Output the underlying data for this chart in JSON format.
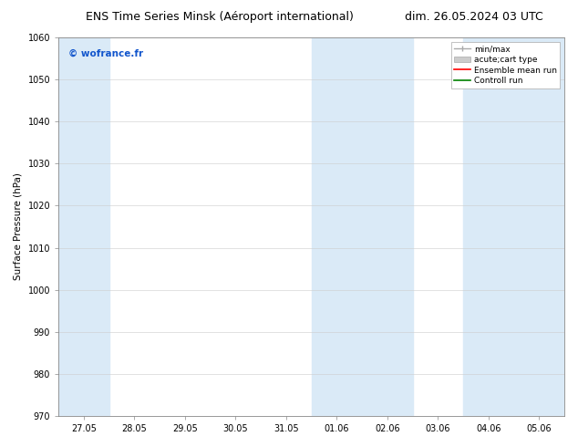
{
  "title": "ENS Time Series Minsk (Aéroport international)",
  "date_label": "dim. 26.05.2024 03 UTC",
  "ylabel": "Surface Pressure (hPa)",
  "ylim": [
    970,
    1060
  ],
  "yticks": [
    970,
    980,
    990,
    1000,
    1010,
    1020,
    1030,
    1040,
    1050,
    1060
  ],
  "xtick_labels": [
    "27.05",
    "28.05",
    "29.05",
    "30.05",
    "31.05",
    "01.06",
    "02.06",
    "03.06",
    "04.06",
    "05.06"
  ],
  "shaded_columns": [
    0,
    5,
    6,
    8,
    9
  ],
  "shaded_color": "#daeaf7",
  "watermark": "© wofrance.fr",
  "watermark_color": "#1155cc",
  "legend_labels": [
    "min/max",
    "acute;cart type",
    "Ensemble mean run",
    "Controll run"
  ],
  "legend_colors": [
    "#aaaaaa",
    "#cccccc",
    "red",
    "green"
  ],
  "bg_color": "#ffffff",
  "plot_bg": "#ffffff",
  "grid_color": "#cccccc",
  "title_fontsize": 9,
  "axis_fontsize": 7.5,
  "tick_fontsize": 7,
  "legend_fontsize": 6.5
}
